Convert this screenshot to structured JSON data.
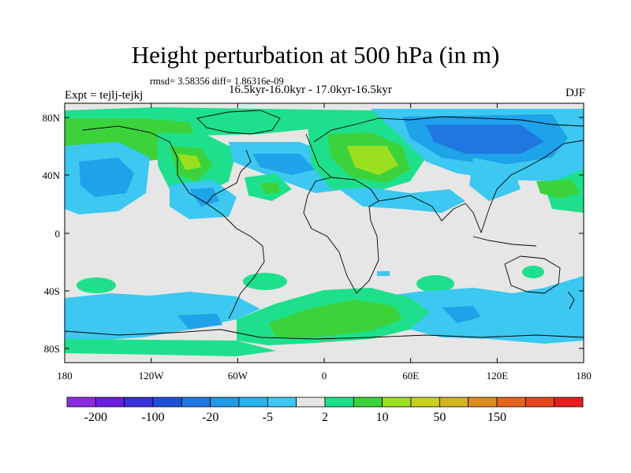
{
  "title": "Height perturbation at 500 hPa (in m)",
  "stats": "rmsd= 3.58356 diff= 1.86316e-09",
  "expt_label": "Expt = tejlj-tejkj",
  "period_label": "16.5kyr-16.0kyr - 17.0kyr-16.5kyr",
  "season": "DJF",
  "lat_ticks": [
    "80N",
    "40N",
    "0",
    "40S",
    "80S"
  ],
  "lon_ticks": [
    "180",
    "120W",
    "60W",
    "0",
    "60E",
    "120E",
    "180"
  ],
  "colorbar": {
    "colors": [
      "#8a2be2",
      "#6a1ee0",
      "#3a2fd8",
      "#1f50d8",
      "#1e78e0",
      "#1e9ae6",
      "#28b4ee",
      "#3cc8f0",
      "#e6e6e6",
      "#1ee08c",
      "#3cd23c",
      "#9be01e",
      "#c8d21e",
      "#d2b41e",
      "#dc8c1e",
      "#e6641e",
      "#e6461e",
      "#e61e1e"
    ],
    "labels": [
      "-200",
      "-100",
      "-20",
      "-5",
      "2",
      "10",
      "50",
      "150"
    ]
  },
  "palette": {
    "neutral": "#e6e6e6",
    "pos1": "#1ee08c",
    "pos2": "#3cd23c",
    "pos3": "#9be01e",
    "neg1": "#3cc8f0",
    "neg2": "#1ea2ea",
    "neg3": "#1e78e0"
  }
}
